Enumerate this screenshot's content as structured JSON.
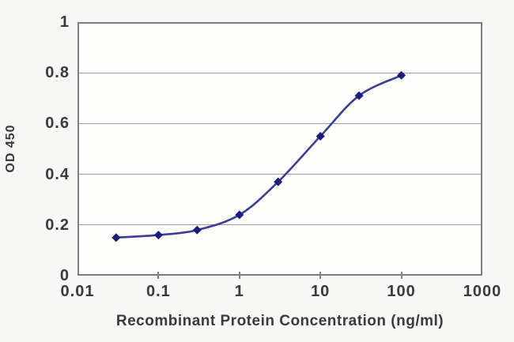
{
  "chart_data": {
    "type": "line",
    "title": "",
    "xlabel": "Recombinant Protein Concentration (ng/ml)",
    "ylabel": "OD 450",
    "x_scale": "log",
    "xlim": [
      0.01,
      1000
    ],
    "ylim": [
      0,
      1
    ],
    "x_ticks": [
      0.01,
      0.1,
      1,
      10,
      100,
      1000
    ],
    "x_tick_labels": [
      "0.01",
      "0.1",
      "1",
      "10",
      "100",
      "1000"
    ],
    "y_ticks": [
      0,
      0.2,
      0.4,
      0.6,
      0.8,
      1
    ],
    "y_tick_labels": [
      "0",
      "0.2",
      "0.4",
      "0.6",
      "0.8",
      "1"
    ],
    "grid": "horizontal",
    "legend": "none",
    "series": [
      {
        "name": "OD450",
        "marker": "diamond",
        "line_color": "#3c3c9c",
        "marker_color": "#1b1b80",
        "points": [
          [
            0.03,
            0.15
          ],
          [
            0.1,
            0.16
          ],
          [
            0.3,
            0.18
          ],
          [
            1,
            0.24
          ],
          [
            3,
            0.37
          ],
          [
            10,
            0.55
          ],
          [
            30,
            0.71
          ],
          [
            100,
            0.79
          ]
        ]
      }
    ],
    "colors": {
      "grid": "#9b9b9b",
      "border": "#7e7e7e",
      "text": "#3a3a3a",
      "plot_bg": "#fdfdfc",
      "page_bg": "#f7f7f5"
    }
  }
}
